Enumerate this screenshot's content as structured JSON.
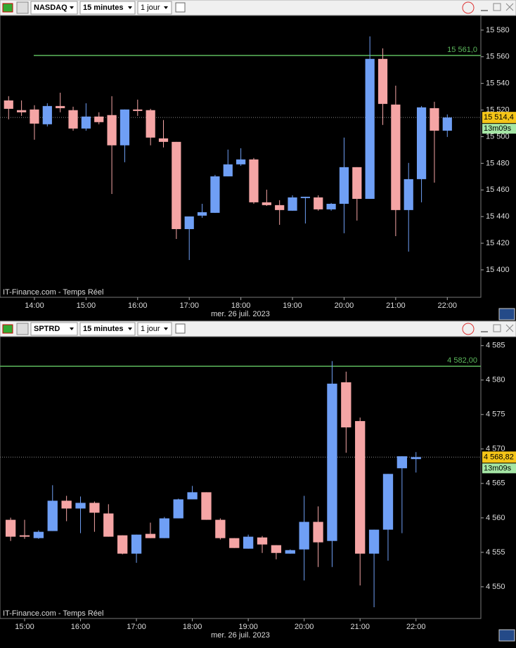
{
  "chart_data": [
    {
      "type": "candlestick",
      "symbol": "NASDAQ",
      "interval": "15 minutes",
      "period": "1 jour",
      "watermark": "IT-Finance.com - Temps Réel",
      "xlabel": "mer. 26 juil. 2023",
      "up_color": "#6f9ff5",
      "down_color": "#f5a5a5",
      "x": [
        13.5,
        13.75,
        14,
        14.25,
        14.5,
        14.75,
        15,
        15.25,
        15.5,
        15.75,
        16,
        16.25,
        16.5,
        16.75,
        17,
        17.25,
        17.5,
        17.75,
        18,
        18.25,
        18.5,
        18.75,
        19,
        19.25,
        19.5,
        19.75,
        20,
        20.25,
        20.5,
        20.75,
        21,
        21.25,
        21.5,
        21.75,
        22
      ],
      "open": [
        15527.2,
        15519.9,
        15520.4,
        15509.3,
        15523,
        15519.9,
        15506.1,
        15515.1,
        15516.2,
        15493.5,
        15520.4,
        15519.9,
        15498.7,
        15496.1,
        15430.6,
        15440.7,
        15442.8,
        15470.2,
        15479.2,
        15482.9,
        15450.7,
        15448.6,
        15444.4,
        15453.9,
        15454.4,
        15445.4,
        15449.6,
        15477.1,
        15453.3,
        15558.4,
        15524.1,
        15444.9,
        15468.1,
        15521.4,
        15504.5
      ],
      "high": [
        15530.4,
        15527.2,
        15523.6,
        15525.1,
        15533,
        15522.5,
        15525.1,
        15518.3,
        15530.4,
        15520.4,
        15527.8,
        15520.9,
        15512.5,
        15496.1,
        15440.1,
        15449.6,
        15471.3,
        15490.3,
        15491.3,
        15484,
        15460.2,
        15452.3,
        15456,
        15454.9,
        15456,
        15450.2,
        15499.3,
        15477.1,
        15575.3,
        15566.3,
        15538.3,
        15480.3,
        15523,
        15526.2,
        15516.7
      ],
      "low": [
        15513,
        15515.6,
        15497.7,
        15507.7,
        15518.3,
        15504.5,
        15504.5,
        15509.3,
        15457,
        15480.8,
        15515.6,
        15493.5,
        15491.9,
        15423.2,
        15407.4,
        15439.1,
        15442.8,
        15470.2,
        15478.1,
        15449.6,
        15448,
        15433.8,
        15444.4,
        15434.8,
        15444.4,
        15444.4,
        15427.5,
        15437,
        15453.3,
        15508.8,
        15425.3,
        15413.7,
        15450.7,
        15465.5,
        15499.8
      ],
      "close": [
        15520.9,
        15518.3,
        15509.8,
        15523,
        15521.4,
        15506.1,
        15515.1,
        15510.9,
        15493.5,
        15520.4,
        15519.3,
        15499.3,
        15496.1,
        15430.6,
        15440.1,
        15443.3,
        15470.2,
        15479.2,
        15482.9,
        15450.7,
        15448.6,
        15444.9,
        15454.4,
        15454.9,
        15445.4,
        15449.6,
        15477.1,
        15453.3,
        15558.4,
        15524.6,
        15444.9,
        15468.1,
        15522,
        15504.5,
        15514.4
      ],
      "ylim": [
        15379.4,
        15591
      ],
      "yticks": [
        {
          "value": 15400,
          "label": "15 400"
        },
        {
          "value": 15420,
          "label": "15 420"
        },
        {
          "value": 15440,
          "label": "15 440"
        },
        {
          "value": 15460,
          "label": "15 460"
        },
        {
          "value": 15480,
          "label": "15 480"
        },
        {
          "value": 15500,
          "label": "15 500"
        },
        {
          "value": 15520,
          "label": "15 520"
        },
        {
          "value": 15540,
          "label": "15 540"
        },
        {
          "value": 15560,
          "label": "15 560"
        },
        {
          "value": 15580,
          "label": "15 580"
        }
      ],
      "xlim": [
        13.333,
        22.65
      ],
      "xticks": [
        {
          "value": 14,
          "label": "14:00"
        },
        {
          "value": 15,
          "label": "15:00"
        },
        {
          "value": 16,
          "label": "16:00"
        },
        {
          "value": 17,
          "label": "17:00"
        },
        {
          "value": 18,
          "label": "18:00"
        },
        {
          "value": 19,
          "label": "19:00"
        },
        {
          "value": 20,
          "label": "20:00"
        },
        {
          "value": 21,
          "label": "21:00"
        },
        {
          "value": 22,
          "label": "22:00"
        }
      ],
      "hline": {
        "value": 15561.0,
        "label": "15 561,0",
        "color": "#5cb85c"
      },
      "last": {
        "value": 15514.4,
        "label": "15 514,4",
        "timer": "13m09s"
      }
    },
    {
      "type": "candlestick",
      "symbol": "SPTRD",
      "interval": "15 minutes",
      "period": "1 jour",
      "watermark": "IT-Finance.com - Temps Réel",
      "xlabel": "mer. 26 juil. 2023",
      "up_color": "#6f9ff5",
      "down_color": "#f5a5a5",
      "x": [
        14.75,
        15,
        15.25,
        15.5,
        15.75,
        16,
        16.25,
        16.5,
        16.75,
        17,
        17.25,
        17.5,
        17.75,
        18,
        18.25,
        18.5,
        18.75,
        19,
        19.25,
        19.5,
        19.75,
        20,
        20.25,
        20.5,
        20.75,
        21,
        21.25,
        21.5,
        21.75,
        22
      ],
      "open": [
        4559.72,
        4557.47,
        4557.06,
        4558.09,
        4562.49,
        4561.36,
        4562.18,
        4560.64,
        4557.47,
        4554.81,
        4557.68,
        4557.06,
        4559.93,
        4562.69,
        4563.72,
        4559.72,
        4557.06,
        4555.53,
        4557.16,
        4556.04,
        4554.81,
        4555.42,
        4559.42,
        4556.65,
        4579.68,
        4574.05,
        4554.81,
        4558.29,
        4567.2,
        4568.53
      ],
      "high": [
        4560.03,
        4559.72,
        4558.19,
        4564.74,
        4563.2,
        4563.1,
        4562.38,
        4561.98,
        4557.47,
        4557.57,
        4559.31,
        4560.13,
        4562.79,
        4564.64,
        4563.72,
        4559.93,
        4557.06,
        4557.57,
        4557.37,
        4556.04,
        4555.42,
        4563.2,
        4561.67,
        4582.75,
        4581.22,
        4574.56,
        4558.29,
        4566.38,
        4568.94,
        4569.55
      ],
      "low": [
        4556.65,
        4556.96,
        4556.96,
        4558.09,
        4559.52,
        4557.78,
        4557.98,
        4557.27,
        4554.71,
        4553.48,
        4557.06,
        4557.06,
        4559.93,
        4562.69,
        4559.72,
        4556.86,
        4555.63,
        4555.53,
        4554.91,
        4553.99,
        4554.81,
        4550.92,
        4552.87,
        4552.87,
        4569.45,
        4550.2,
        4547.03,
        4553.79,
        4557.78,
        4566.58
      ],
      "close": [
        4557.27,
        4557.27,
        4557.98,
        4562.49,
        4561.36,
        4562.18,
        4560.75,
        4557.27,
        4554.81,
        4557.57,
        4557.06,
        4559.93,
        4562.69,
        4563.72,
        4559.72,
        4557.06,
        4555.63,
        4557.27,
        4556.14,
        4554.91,
        4555.32,
        4559.42,
        4556.45,
        4579.48,
        4573.13,
        4554.81,
        4558.29,
        4566.38,
        4568.94,
        4568.82
      ],
      "ylim": [
        4545.4,
        4586.3
      ],
      "yticks": [
        {
          "value": 4550,
          "label": "4 550"
        },
        {
          "value": 4555,
          "label": "4 555"
        },
        {
          "value": 4560,
          "label": "4 560"
        },
        {
          "value": 4565,
          "label": "4 565"
        },
        {
          "value": 4570,
          "label": "4 570"
        },
        {
          "value": 4575,
          "label": "4 575"
        },
        {
          "value": 4580,
          "label": "4 580"
        },
        {
          "value": 4585,
          "label": "4 585"
        }
      ],
      "xlim": [
        14.56,
        23.16
      ],
      "xticks": [
        {
          "value": 15,
          "label": "15:00"
        },
        {
          "value": 16,
          "label": "16:00"
        },
        {
          "value": 17,
          "label": "17:00"
        },
        {
          "value": 18,
          "label": "18:00"
        },
        {
          "value": 19,
          "label": "19:00"
        },
        {
          "value": 20,
          "label": "20:00"
        },
        {
          "value": 21,
          "label": "21:00"
        },
        {
          "value": 22,
          "label": "22:00"
        }
      ],
      "hline": {
        "value": 4582.0,
        "label": "4 582,00",
        "color": "#5cb85c"
      },
      "last": {
        "value": 4568.82,
        "label": "4 568,82",
        "timer": "13m09s"
      }
    }
  ]
}
